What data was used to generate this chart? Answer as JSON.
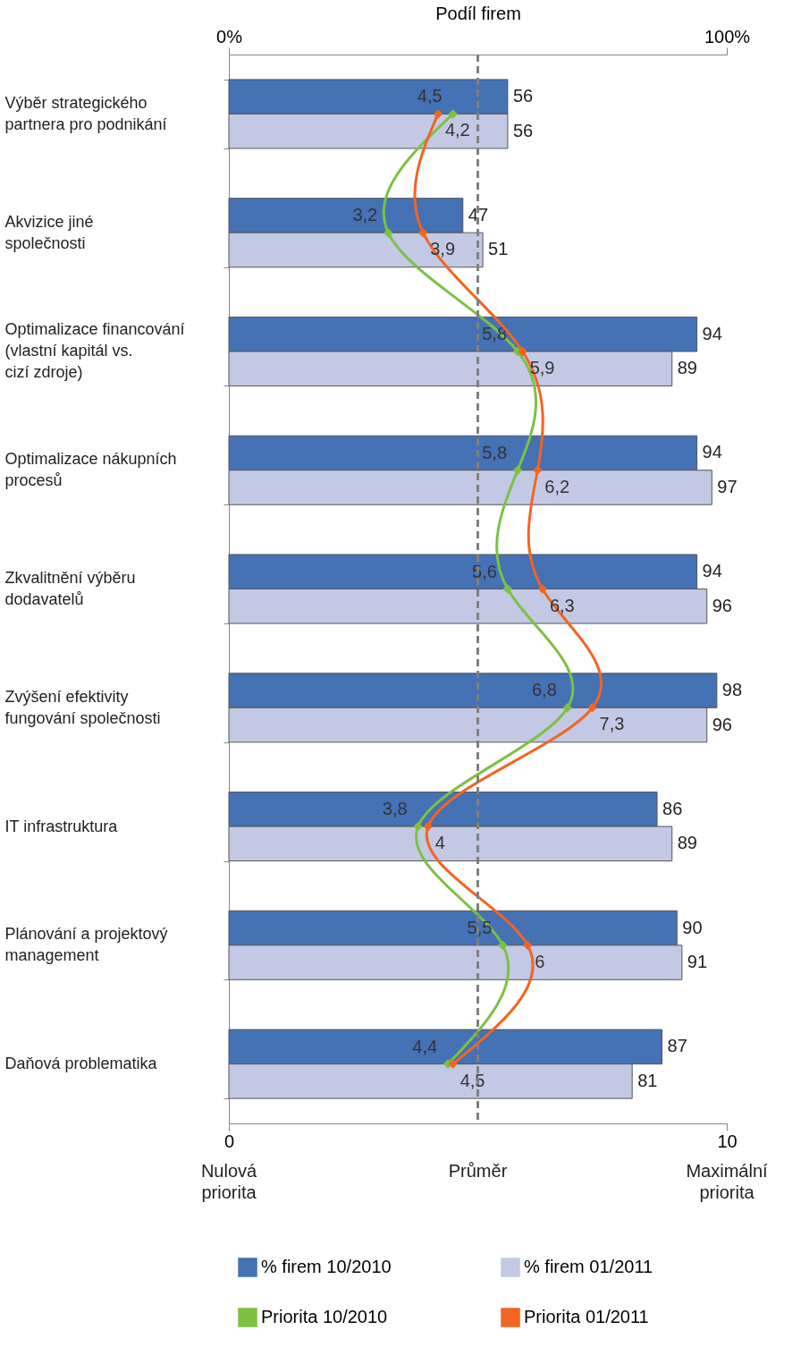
{
  "chart_data": {
    "type": "bar",
    "orientation": "horizontal",
    "categories": [
      "Výběr strategického partnera pro podnikání",
      "Akvizice jiné společnosti",
      "Optimalizace financování (vlastní kapitál vs. cizí zdroje)",
      "Optimalizace nákupních procesů",
      "Zkvalitnění výběru dodavatelů",
      "Zvýšení efektivity fungování společnosti",
      "IT infrastruktura",
      "Plánování a projektový management",
      "Daňová problematika"
    ],
    "series": [
      {
        "name": "% firem 10/2010",
        "color": "#4571b5",
        "axis": "x2",
        "values": [
          56,
          47,
          94,
          94,
          94,
          98,
          86,
          90,
          87
        ]
      },
      {
        "name": "% firem 01/2011",
        "color": "#c3c9e4",
        "axis": "x2",
        "values": [
          56,
          51,
          89,
          97,
          96,
          96,
          89,
          91,
          81
        ]
      },
      {
        "name": "Priorita 10/2010",
        "type": "line",
        "color": "#7cc142",
        "values": [
          4.5,
          3.2,
          5.8,
          5.8,
          5.6,
          6.8,
          3.8,
          5.5,
          4.4
        ],
        "value_labels": [
          "4,5",
          "3,2",
          "5,8",
          "5,8",
          "5,6",
          "6,8",
          "3,8",
          "5,5",
          "4,4"
        ]
      },
      {
        "name": "Priorita 01/2011",
        "type": "line",
        "color": "#f26522",
        "values": [
          4.2,
          3.9,
          5.9,
          6.2,
          6.3,
          7.3,
          4,
          6,
          4.5
        ],
        "value_labels": [
          "4,2",
          "3,9",
          "5,9",
          "6,2",
          "6,3",
          "7,3",
          "4",
          "6",
          "4,5"
        ]
      }
    ],
    "data_labels": true,
    "x2label": "Podíl firem",
    "x2lim": [
      0,
      100
    ],
    "x2ticks": [
      {
        "value": 0,
        "label": "0%"
      },
      {
        "value": 100,
        "label": "100%"
      }
    ],
    "xlim": [
      0,
      10
    ],
    "xticks": [
      0,
      10
    ],
    "ref_lines": [
      {
        "axis": "x",
        "value": 5,
        "label": "Průměr",
        "color": "#808080",
        "line_style": "dashed"
      }
    ],
    "annotations": [
      "Nulová priorita",
      "Maximální priorita"
    ],
    "marker": "diamond",
    "legend": "bottom"
  }
}
